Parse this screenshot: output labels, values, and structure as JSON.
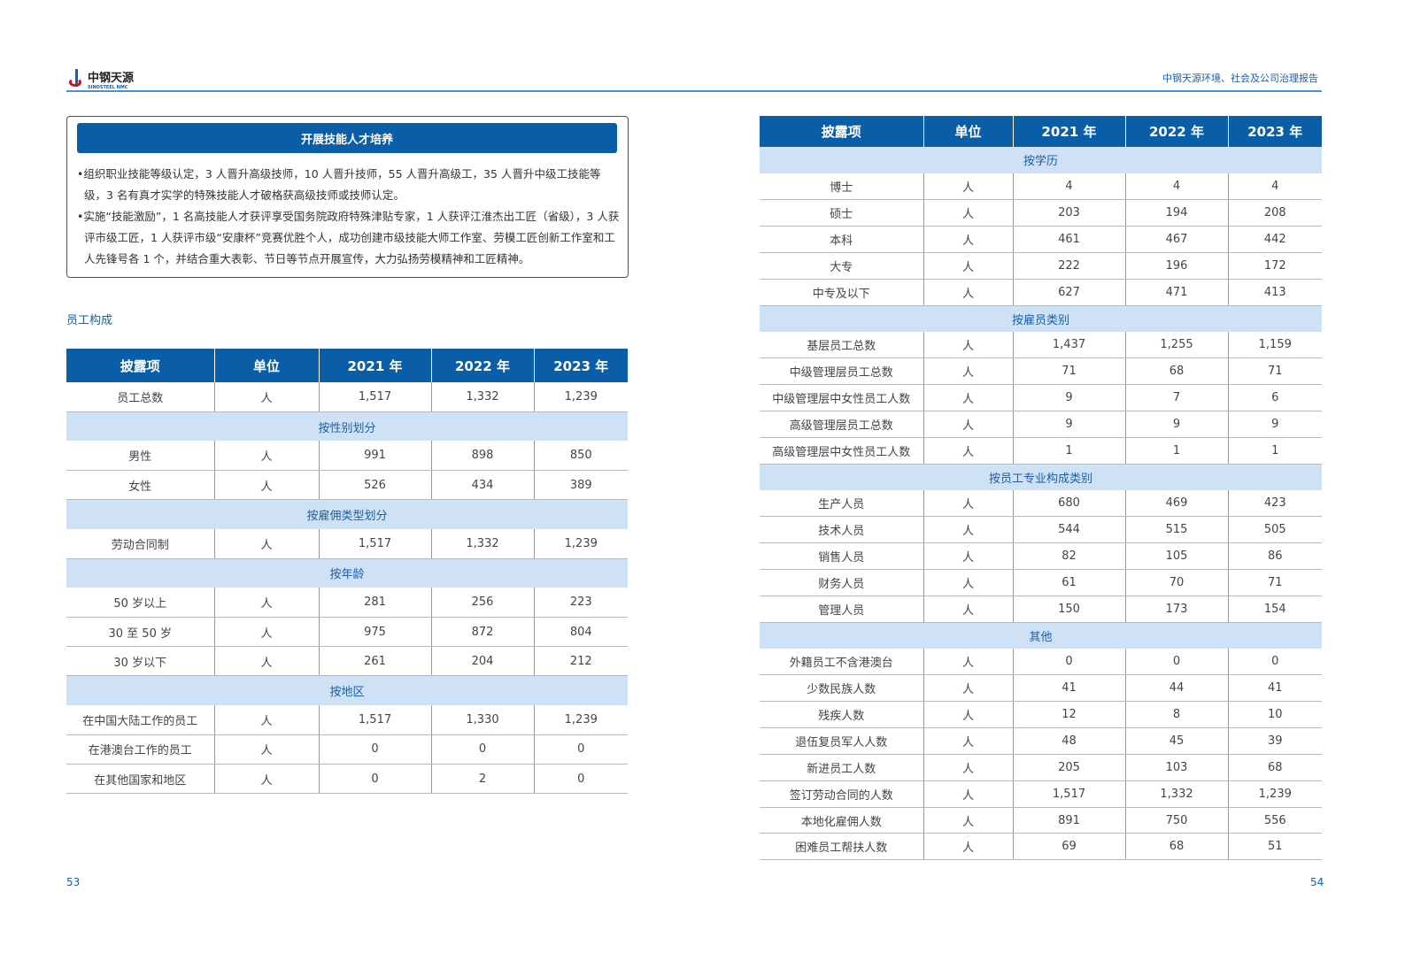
{
  "header": {
    "logo_cn": "中钢天源",
    "logo_en": "SINOSTEEL NMC",
    "report_title": "中钢天源环境、社会及公司治理报告"
  },
  "skills_box": {
    "title": "开展技能人才培养",
    "bullets": [
      "•组织职业技能等级认定，3 人晋升高级技师，10 人晋升技师，55 人晋升高级工，35 人晋升中级工技能等级，3 名有真才实学的特殊技能人才破格获高级技师或技师认定。",
      "•实施“技能激励”，1 名高技能人才获评享受国务院政府特殊津贴专家，1 人获评江淮杰出工匠（省级），3 人获评市级工匠，1 人获评市级“安康杯”竞赛优胜个人，成功创建市级技能大师工作室、劳模工匠创新工作室和工人先锋号各 1 个，并结合重大表彰、节日等节点开展宣传，大力弘扬劳模精神和工匠精神。"
    ]
  },
  "section_label": "员工构成",
  "columns": [
    "披露项",
    "单位",
    "2021 年",
    "2022 年",
    "2023 年"
  ],
  "table_left": [
    {
      "label": "员工总数",
      "unit": "人",
      "values": [
        "1,517",
        "1,332",
        "1,239"
      ]
    },
    {
      "section": "按性别划分"
    },
    {
      "label": "男性",
      "unit": "人",
      "values": [
        "991",
        "898",
        "850"
      ]
    },
    {
      "label": "女性",
      "unit": "人",
      "values": [
        "526",
        "434",
        "389"
      ]
    },
    {
      "section": "按雇佣类型划分"
    },
    {
      "label": "劳动合同制",
      "unit": "人",
      "values": [
        "1,517",
        "1,332",
        "1,239"
      ]
    },
    {
      "section": "按年龄"
    },
    {
      "label": "50 岁以上",
      "unit": "人",
      "values": [
        "281",
        "256",
        "223"
      ]
    },
    {
      "label": "30 至 50 岁",
      "unit": "人",
      "values": [
        "975",
        "872",
        "804"
      ]
    },
    {
      "label": "30 岁以下",
      "unit": "人",
      "values": [
        "261",
        "204",
        "212"
      ]
    },
    {
      "section": "按地区"
    },
    {
      "label": "在中国大陆工作的员工",
      "unit": "人",
      "values": [
        "1,517",
        "1,330",
        "1,239"
      ]
    },
    {
      "label": "在港澳台工作的员工",
      "unit": "人",
      "values": [
        "0",
        "0",
        "0"
      ]
    },
    {
      "label": "在其他国家和地区",
      "unit": "人",
      "values": [
        "0",
        "2",
        "0"
      ]
    }
  ],
  "table_right": [
    {
      "section": "按学历"
    },
    {
      "label": "博士",
      "unit": "人",
      "values": [
        "4",
        "4",
        "4"
      ]
    },
    {
      "label": "硕士",
      "unit": "人",
      "values": [
        "203",
        "194",
        "208"
      ]
    },
    {
      "label": "本科",
      "unit": "人",
      "values": [
        "461",
        "467",
        "442"
      ]
    },
    {
      "label": "大专",
      "unit": "人",
      "values": [
        "222",
        "196",
        "172"
      ]
    },
    {
      "label": "中专及以下",
      "unit": "人",
      "values": [
        "627",
        "471",
        "413"
      ]
    },
    {
      "section": "按雇员类别"
    },
    {
      "label": "基层员工总数",
      "unit": "人",
      "values": [
        "1,437",
        "1,255",
        "1,159"
      ]
    },
    {
      "label": "中级管理层员工总数",
      "unit": "人",
      "values": [
        "71",
        "68",
        "71"
      ]
    },
    {
      "label": "中级管理层中女性员工人数",
      "unit": "人",
      "values": [
        "9",
        "7",
        "6"
      ]
    },
    {
      "label": "高级管理层员工总数",
      "unit": "人",
      "values": [
        "9",
        "9",
        "9"
      ]
    },
    {
      "label": "高级管理层中女性员工人数",
      "unit": "人",
      "values": [
        "1",
        "1",
        "1"
      ]
    },
    {
      "section": "按员工专业构成类别"
    },
    {
      "label": "生产人员",
      "unit": "人",
      "values": [
        "680",
        "469",
        "423"
      ]
    },
    {
      "label": "技术人员",
      "unit": "人",
      "values": [
        "544",
        "515",
        "505"
      ]
    },
    {
      "label": "销售人员",
      "unit": "人",
      "values": [
        "82",
        "105",
        "86"
      ]
    },
    {
      "label": "财务人员",
      "unit": "人",
      "values": [
        "61",
        "70",
        "71"
      ]
    },
    {
      "label": "管理人员",
      "unit": "人",
      "values": [
        "150",
        "173",
        "154"
      ]
    },
    {
      "section": "其他"
    },
    {
      "label": "外籍员工不含港澳台",
      "unit": "人",
      "values": [
        "0",
        "0",
        "0"
      ]
    },
    {
      "label": "少数民族人数",
      "unit": "人",
      "values": [
        "41",
        "44",
        "41"
      ]
    },
    {
      "label": "残疾人数",
      "unit": "人",
      "values": [
        "12",
        "8",
        "10"
      ]
    },
    {
      "label": "退伍复员军人人数",
      "unit": "人",
      "values": [
        "48",
        "45",
        "39"
      ]
    },
    {
      "label": "新进员工人数",
      "unit": "人",
      "values": [
        "205",
        "103",
        "68"
      ]
    },
    {
      "label": "签订劳动合同的人数",
      "unit": "人",
      "values": [
        "1,517",
        "1,332",
        "1,239"
      ]
    },
    {
      "label": "本地化雇佣人数",
      "unit": "人",
      "values": [
        "891",
        "750",
        "556"
      ]
    },
    {
      "label": "困难员工帮扶人数",
      "unit": "人",
      "values": [
        "69",
        "68",
        "51"
      ]
    }
  ],
  "page_numbers": {
    "left": "53",
    "right": "54"
  },
  "colors": {
    "header_blue": "#0a5ea8",
    "section_blue": "#cfe2f5",
    "accent": "#1b5ea8"
  }
}
